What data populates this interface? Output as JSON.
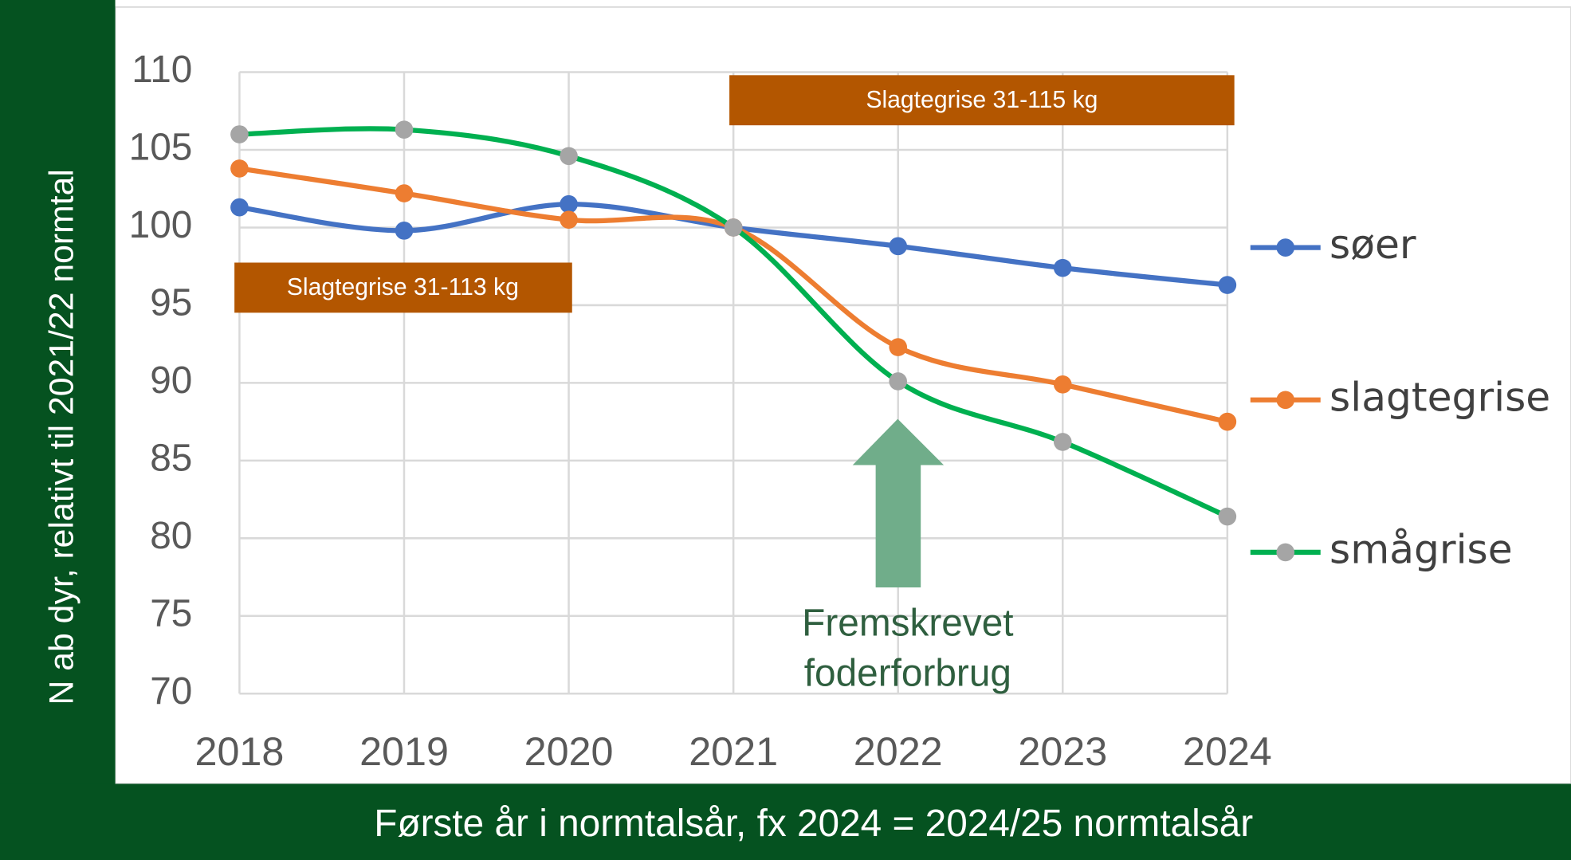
{
  "chart_data": {
    "type": "line",
    "y_label": "N ab dyr, relativt til 2021/22 normtal",
    "x_label": "Første år i normtalsår, fx 2024 = 2024/25 normtalsår",
    "categories": [
      "2018",
      "2019",
      "2020",
      "2021",
      "2022",
      "2023",
      "2024"
    ],
    "series": [
      {
        "name": "søer",
        "color": "#4472c4",
        "marker_color": "#4472c4",
        "values": [
          101.3,
          99.8,
          101.5,
          100,
          98.8,
          97.4,
          96.3
        ]
      },
      {
        "name": "slagtegrise",
        "color": "#ed7d31",
        "marker_color": "#ed7d31",
        "values": [
          103.8,
          102.2,
          100.5,
          100,
          92.3,
          89.9,
          87.5
        ]
      },
      {
        "name": "smågrise",
        "color": "#00b050",
        "marker_color": "#a5a5a5",
        "values": [
          106,
          106.3,
          104.6,
          100,
          90.1,
          86.2,
          81.4
        ]
      }
    ],
    "ylim": [
      70,
      110
    ],
    "yticks": [
      70,
      75,
      80,
      85,
      90,
      95,
      100,
      105,
      110
    ],
    "grid": true,
    "smooth": true,
    "legend": "right",
    "annotations": [
      "Slagtegrise 31-113 kg",
      "Slagtegrise 31-115 kg",
      "Fremskrevet foderforbrug"
    ]
  }
}
